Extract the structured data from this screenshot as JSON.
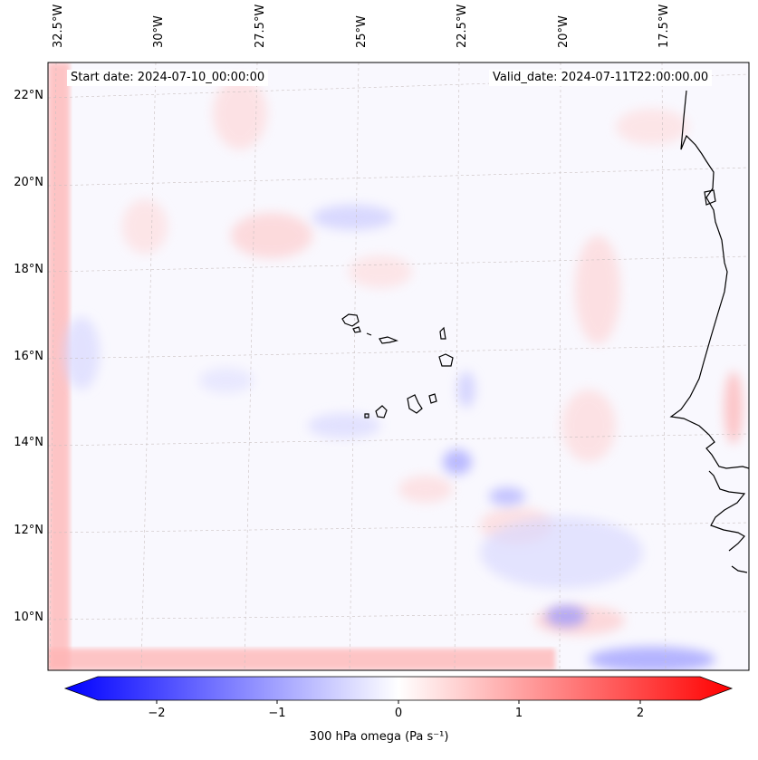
{
  "map": {
    "start_date_label": "Start date: 2024-07-10_00:00:00",
    "valid_date_label": "Valid_date: 2024-07-11T22:00:00.00",
    "lon_labels": [
      "32.5°W",
      "30°W",
      "27.5°W",
      "25°W",
      "22.5°W",
      "20°W",
      "17.5°W"
    ],
    "lat_labels": [
      "22°N",
      "20°N",
      "18°N",
      "16°N",
      "14°N",
      "12°N",
      "10°N"
    ]
  },
  "colorbar": {
    "label": "300 hPa omega (Pa s⁻¹)",
    "ticks": [
      "−2",
      "−1",
      "0",
      "1",
      "2"
    ],
    "min_color": "#0000ff",
    "mid_color": "#ffffff",
    "max_color": "#ff0000"
  }
}
